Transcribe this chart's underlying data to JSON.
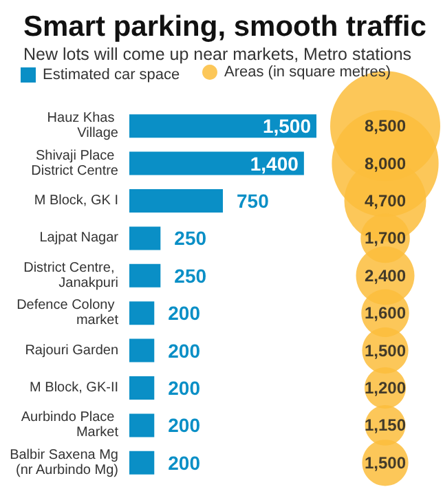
{
  "chart_data": [
    {
      "type": "bar",
      "orientation": "horizontal",
      "title": "Smart parking, smooth traffic",
      "subtitle": "New lots will come up near markets, Metro stations",
      "categories": [
        "Hauz Khas Village",
        "Shivaji Place District Centre",
        "M Block, GK I",
        "Lajpat Nagar",
        "District Centre, Janakpuri",
        "Defence Colony market",
        "Rajouri Garden",
        "M Block, GK-II",
        "Aurbindo Place Market",
        "Balbir Saxena Mg (nr Aurbindo Mg)"
      ],
      "series": [
        {
          "name": "Estimated car space",
          "color": "#0a8fc6",
          "values": [
            1500,
            1400,
            750,
            250,
            250,
            200,
            200,
            200,
            200,
            200
          ],
          "value_labels": [
            "1,500",
            "1,400",
            "750",
            "250",
            "250",
            "200",
            "200",
            "200",
            "200",
            "200"
          ]
        }
      ],
      "legend": "top left"
    },
    {
      "type": "other",
      "series": [
        {
          "name": "Areas (in square metres)",
          "color": "#fbbd3c",
          "values": [
            8500,
            8000,
            4700,
            1700,
            2400,
            1600,
            1500,
            1200,
            1150,
            1500
          ],
          "value_labels": [
            "8,500",
            "8,000",
            "4,700",
            "1,700",
            "2,400",
            "1,600",
            "1,500",
            "1,200",
            "1,150",
            "1,500"
          ]
        }
      ],
      "legend": "top left"
    }
  ]
}
